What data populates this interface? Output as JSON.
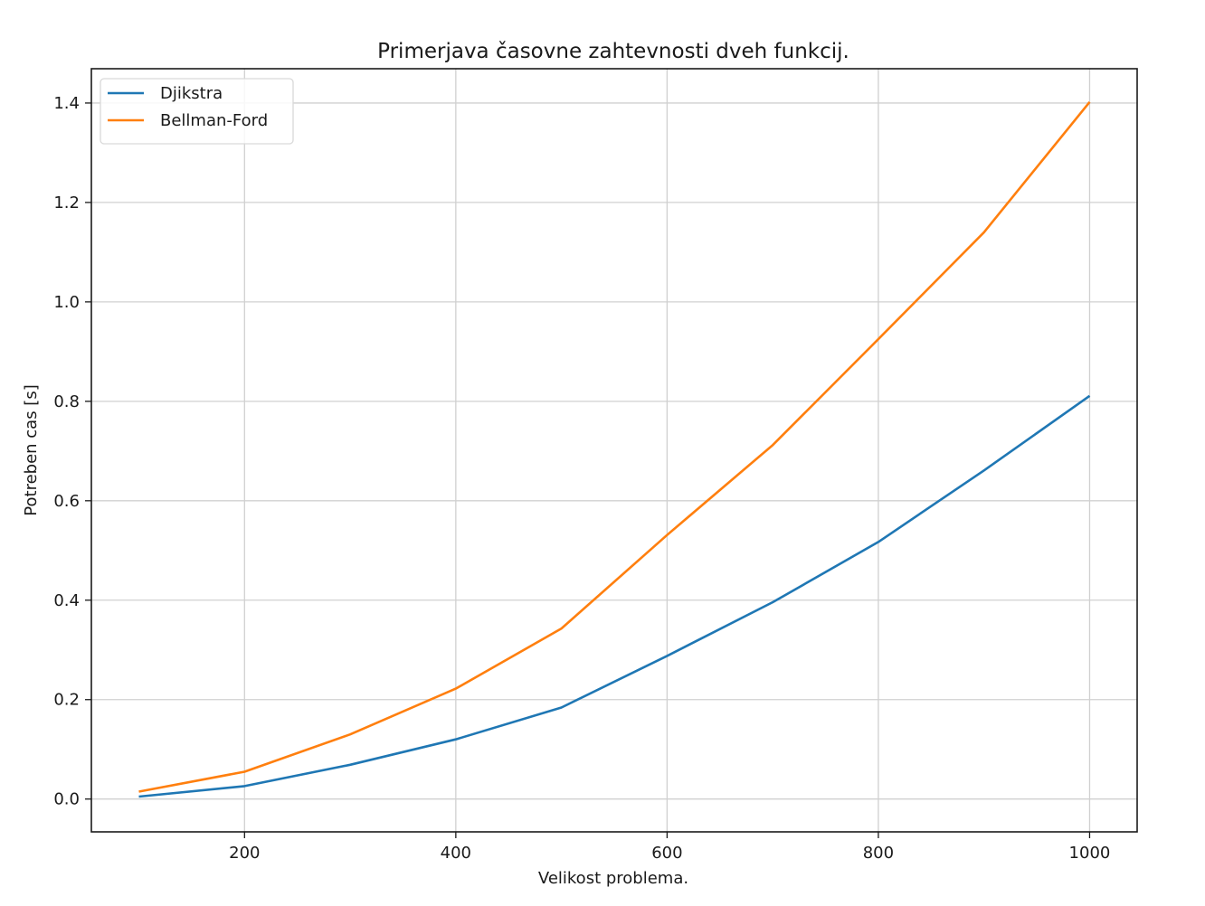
{
  "chart_data": {
    "type": "line",
    "title": "Primerjava časovne zahtevnosti dveh funkcij.",
    "xlabel": "Velikost problema.",
    "ylabel": "Potreben cas [s]",
    "x": [
      100,
      200,
      300,
      400,
      500,
      600,
      700,
      800,
      900,
      1000
    ],
    "xlim": [
      55,
      1045
    ],
    "ylim": [
      -0.066,
      1.469
    ],
    "xticks": [
      200,
      400,
      600,
      800,
      1000
    ],
    "xtick_labels": [
      "200",
      "400",
      "600",
      "800",
      "1000"
    ],
    "yticks": [
      0.0,
      0.2,
      0.4,
      0.6,
      0.8,
      1.0,
      1.2,
      1.4
    ],
    "ytick_labels": [
      "0.0",
      "0.2",
      "0.4",
      "0.6",
      "0.8",
      "1.0",
      "1.2",
      "1.4"
    ],
    "grid": true,
    "legend_position": "top-left",
    "series": [
      {
        "name": "Djikstra",
        "color": "#1f77b4",
        "values": [
          0.005,
          0.026,
          0.069,
          0.12,
          0.184,
          0.288,
          0.396,
          0.517,
          0.661,
          0.811
        ]
      },
      {
        "name": "Bellman-Ford",
        "color": "#ff7f0e",
        "values": [
          0.015,
          0.055,
          0.13,
          0.222,
          0.343,
          0.531,
          0.712,
          0.925,
          1.14,
          1.402
        ]
      }
    ]
  }
}
